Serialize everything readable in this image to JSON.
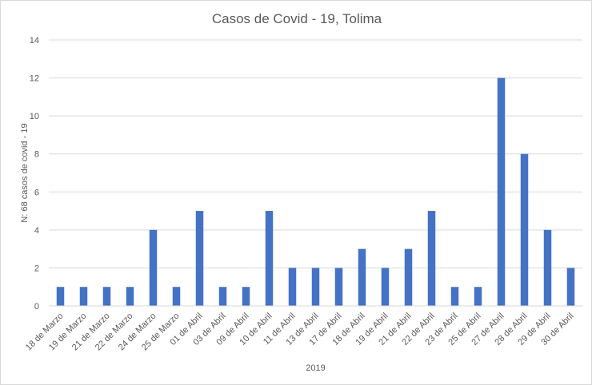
{
  "chart_data": {
    "type": "bar",
    "title": "Casos de Covid - 19, Tolima",
    "xlabel": "2019",
    "ylabel": "N: 68 casos de covid - 19",
    "ylim": [
      0,
      14
    ],
    "yticks": [
      0,
      2,
      4,
      6,
      8,
      10,
      12,
      14
    ],
    "grid": true,
    "legend": "none",
    "bar_color": "#4472c4",
    "categories": [
      "18 de Marzo",
      "19 de Marzo",
      "21 de Marzo",
      "22 de Marzo",
      "24 de Marzo",
      "25 de Marzo",
      "01 de Abril",
      "03 de Abril",
      "09 de Abril",
      "10 de Abril",
      "11 de Abril",
      "13 de Abril",
      "17 de Abril",
      "18 de Abril",
      "19 de Abril",
      "21 de Abril",
      "22 de Abril",
      "23 de Abril",
      "25 de Abril",
      "27 de Abril",
      "28 de Abril",
      "29 de Abril",
      "30 de Abril"
    ],
    "values": [
      1,
      1,
      1,
      1,
      4,
      1,
      5,
      1,
      1,
      5,
      2,
      2,
      2,
      3,
      2,
      3,
      5,
      1,
      1,
      12,
      8,
      4,
      2
    ]
  }
}
